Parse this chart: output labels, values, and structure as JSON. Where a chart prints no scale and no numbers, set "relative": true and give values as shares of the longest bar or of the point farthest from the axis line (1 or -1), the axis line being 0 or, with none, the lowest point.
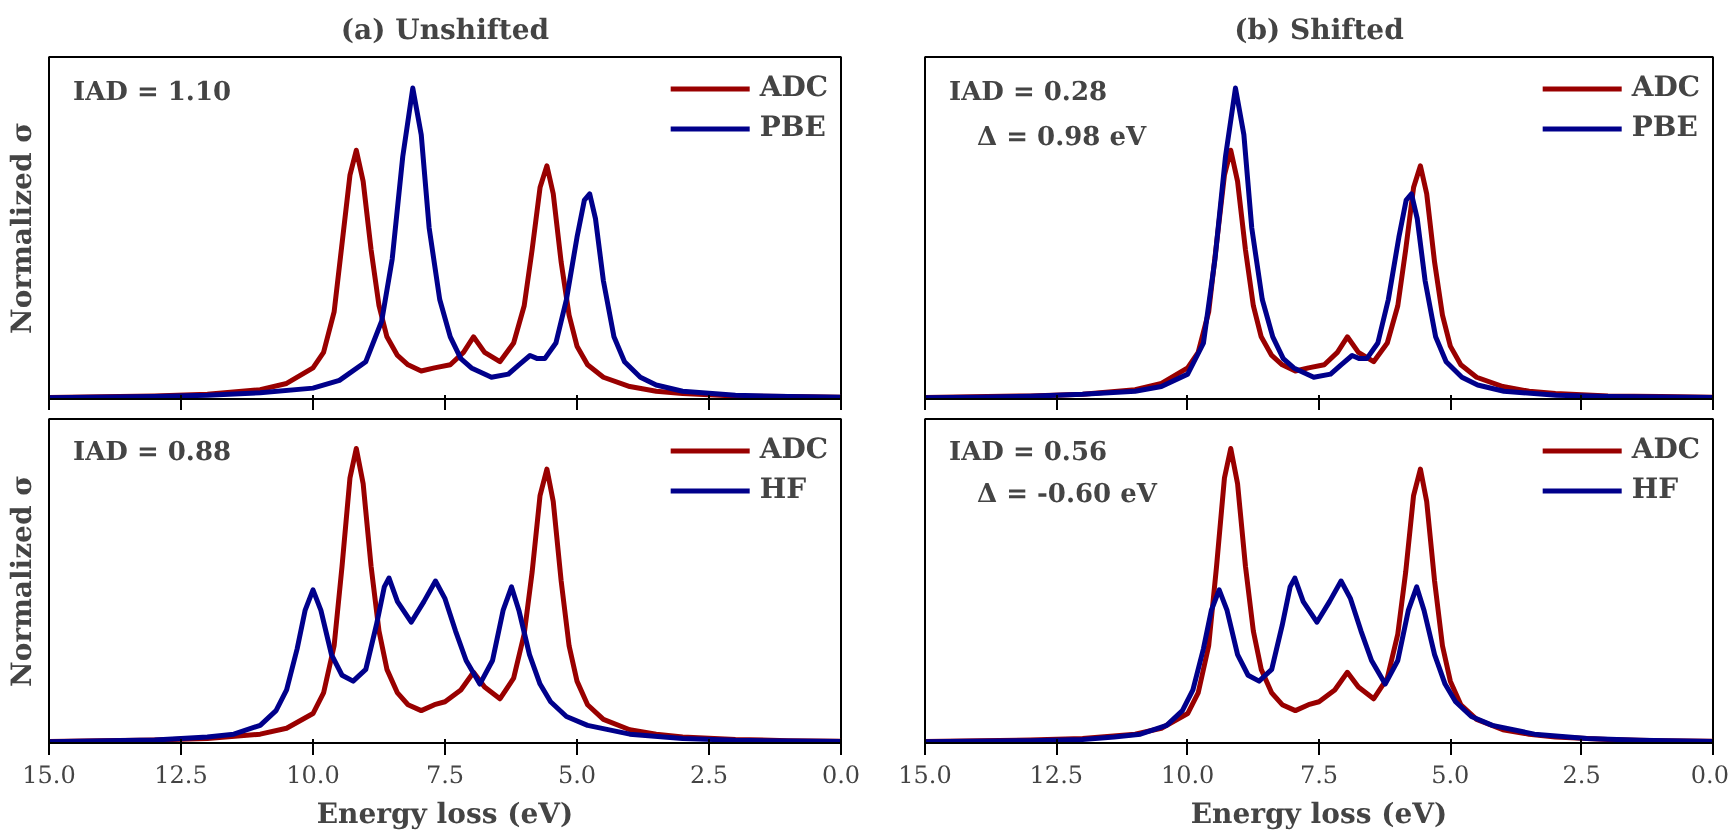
{
  "chart_data": [
    {
      "type": "line",
      "title": "(a) Unshifted",
      "ylabel": "Normalized σ",
      "relative": true,
      "xlim": [
        15,
        0
      ],
      "xticks": [
        15,
        12.5,
        10,
        7.5,
        5,
        2.5,
        0
      ],
      "tick_labels": false,
      "grid": false,
      "legend": "top right",
      "annotations": [
        "IAD = 1.10"
      ],
      "series": [
        {
          "name": "ADC",
          "color": "#990000",
          "x": [
            15,
            13,
            12,
            11,
            10.5,
            10,
            9.8,
            9.6,
            9.45,
            9.3,
            9.18,
            9.05,
            8.9,
            8.75,
            8.6,
            8.4,
            8.2,
            7.95,
            7.7,
            7.4,
            7.15,
            6.96,
            6.75,
            6.46,
            6.2,
            6.0,
            5.85,
            5.7,
            5.57,
            5.45,
            5.3,
            5.15,
            5.0,
            4.8,
            4.5,
            4.0,
            3.5,
            3.0,
            2.0,
            1.0,
            0
          ],
          "values": [
            0.005,
            0.01,
            0.015,
            0.03,
            0.05,
            0.1,
            0.15,
            0.28,
            0.5,
            0.72,
            0.8,
            0.7,
            0.48,
            0.3,
            0.2,
            0.14,
            0.11,
            0.09,
            0.1,
            0.11,
            0.15,
            0.2,
            0.15,
            0.12,
            0.18,
            0.3,
            0.48,
            0.68,
            0.75,
            0.66,
            0.44,
            0.27,
            0.17,
            0.11,
            0.07,
            0.04,
            0.025,
            0.018,
            0.01,
            0.008,
            0.006
          ]
        },
        {
          "name": "PBE",
          "color": "#00008b",
          "x": [
            15,
            13,
            12,
            11,
            10,
            9.5,
            9.0,
            8.7,
            8.5,
            8.3,
            8.11,
            7.95,
            7.8,
            7.6,
            7.4,
            7.2,
            7.0,
            6.62,
            6.3,
            6.1,
            5.89,
            5.75,
            5.61,
            5.4,
            5.2,
            5.0,
            4.86,
            4.76,
            4.65,
            4.5,
            4.3,
            4.1,
            3.8,
            3.5,
            3.0,
            2.0,
            1.0,
            0
          ],
          "values": [
            0.004,
            0.008,
            0.012,
            0.02,
            0.035,
            0.06,
            0.12,
            0.25,
            0.45,
            0.78,
            1.0,
            0.85,
            0.55,
            0.32,
            0.2,
            0.13,
            0.1,
            0.07,
            0.08,
            0.11,
            0.14,
            0.13,
            0.13,
            0.18,
            0.32,
            0.52,
            0.64,
            0.66,
            0.58,
            0.38,
            0.2,
            0.12,
            0.07,
            0.045,
            0.025,
            0.012,
            0.008,
            0.006
          ]
        }
      ]
    },
    {
      "type": "line",
      "title": "(b) Shifted",
      "relative": true,
      "xlim": [
        15,
        0
      ],
      "xticks": [
        15,
        12.5,
        10,
        7.5,
        5,
        2.5,
        0
      ],
      "tick_labels": false,
      "grid": false,
      "legend": "top right",
      "annotations": [
        "IAD = 0.28",
        "Δ = 0.98 eV"
      ],
      "series": [
        {
          "name": "ADC",
          "color": "#990000",
          "x": [
            15,
            13,
            12,
            11,
            10.5,
            10,
            9.8,
            9.6,
            9.45,
            9.3,
            9.18,
            9.05,
            8.9,
            8.75,
            8.6,
            8.4,
            8.2,
            7.95,
            7.7,
            7.4,
            7.15,
            6.96,
            6.75,
            6.46,
            6.2,
            6.0,
            5.85,
            5.7,
            5.57,
            5.45,
            5.3,
            5.15,
            5.0,
            4.8,
            4.5,
            4.0,
            3.5,
            3.0,
            2.0,
            1.0,
            0
          ],
          "values": [
            0.005,
            0.01,
            0.015,
            0.03,
            0.05,
            0.1,
            0.15,
            0.28,
            0.5,
            0.72,
            0.8,
            0.7,
            0.48,
            0.3,
            0.2,
            0.14,
            0.11,
            0.09,
            0.1,
            0.11,
            0.15,
            0.2,
            0.15,
            0.12,
            0.18,
            0.3,
            0.48,
            0.68,
            0.75,
            0.66,
            0.44,
            0.27,
            0.17,
            0.11,
            0.07,
            0.04,
            0.025,
            0.018,
            0.01,
            0.008,
            0.006
          ]
        },
        {
          "name": "PBE",
          "color": "#00008b",
          "x": [
            15,
            14,
            13,
            12,
            11,
            10.5,
            10.0,
            9.7,
            9.48,
            9.28,
            9.09,
            8.93,
            8.78,
            8.58,
            8.38,
            8.18,
            7.98,
            7.6,
            7.28,
            7.08,
            6.87,
            6.73,
            6.59,
            6.38,
            6.18,
            5.98,
            5.84,
            5.74,
            5.63,
            5.48,
            5.28,
            5.08,
            4.78,
            4.48,
            3.98,
            2.98,
            1.98,
            0
          ],
          "values": [
            0.004,
            0.006,
            0.009,
            0.015,
            0.025,
            0.04,
            0.08,
            0.18,
            0.45,
            0.78,
            1.0,
            0.85,
            0.55,
            0.32,
            0.2,
            0.13,
            0.1,
            0.07,
            0.08,
            0.11,
            0.14,
            0.13,
            0.13,
            0.18,
            0.32,
            0.52,
            0.64,
            0.66,
            0.58,
            0.38,
            0.2,
            0.12,
            0.07,
            0.045,
            0.025,
            0.012,
            0.008,
            0.005
          ]
        }
      ]
    },
    {
      "type": "line",
      "xlabel": "Energy loss (eV)",
      "ylabel": "Normalized σ",
      "relative": true,
      "xlim": [
        15,
        0
      ],
      "xticks": [
        {
          "value": 15,
          "label": "15.0"
        },
        {
          "value": 12.5,
          "label": "12.5"
        },
        {
          "value": 10,
          "label": "10.0"
        },
        {
          "value": 7.5,
          "label": "7.5"
        },
        {
          "value": 5,
          "label": "5.0"
        },
        {
          "value": 2.5,
          "label": "2.5"
        },
        {
          "value": 0,
          "label": "0.0"
        }
      ],
      "tick_labels": "x",
      "grid": false,
      "legend": "top right",
      "annotations": [
        "IAD = 0.88"
      ],
      "series": [
        {
          "name": "ADC",
          "color": "#990000",
          "x": [
            15,
            13,
            12,
            11,
            10.5,
            10,
            9.8,
            9.6,
            9.45,
            9.3,
            9.18,
            9.05,
            8.9,
            8.75,
            8.6,
            8.4,
            8.2,
            7.95,
            7.7,
            7.5,
            7.2,
            6.96,
            6.75,
            6.46,
            6.2,
            6.0,
            5.85,
            5.7,
            5.57,
            5.45,
            5.3,
            5.15,
            5.0,
            4.8,
            4.5,
            4.0,
            3.5,
            3.0,
            2.0,
            1.0,
            0
          ],
          "values": [
            0.005,
            0.01,
            0.015,
            0.03,
            0.05,
            0.1,
            0.17,
            0.33,
            0.6,
            0.9,
            1.0,
            0.88,
            0.6,
            0.38,
            0.25,
            0.17,
            0.13,
            0.11,
            0.13,
            0.14,
            0.18,
            0.24,
            0.19,
            0.15,
            0.22,
            0.37,
            0.58,
            0.84,
            0.93,
            0.82,
            0.55,
            0.33,
            0.21,
            0.13,
            0.08,
            0.045,
            0.03,
            0.02,
            0.012,
            0.008,
            0.006
          ]
        },
        {
          "name": "HF",
          "color": "#00008b",
          "x": [
            15,
            13,
            12,
            11.5,
            11,
            10.7,
            10.5,
            10.3,
            10.15,
            10.0,
            9.85,
            9.65,
            9.45,
            9.24,
            9.0,
            8.8,
            8.65,
            8.56,
            8.4,
            8.14,
            7.9,
            7.68,
            7.5,
            7.3,
            7.1,
            6.84,
            6.6,
            6.4,
            6.24,
            6.1,
            5.9,
            5.7,
            5.5,
            5.2,
            4.8,
            4.0,
            3.0,
            2.0,
            0
          ],
          "values": [
            0.004,
            0.01,
            0.02,
            0.03,
            0.06,
            0.11,
            0.18,
            0.32,
            0.45,
            0.52,
            0.45,
            0.3,
            0.23,
            0.21,
            0.25,
            0.4,
            0.53,
            0.56,
            0.48,
            0.41,
            0.48,
            0.55,
            0.49,
            0.38,
            0.28,
            0.2,
            0.28,
            0.45,
            0.53,
            0.45,
            0.3,
            0.2,
            0.14,
            0.09,
            0.06,
            0.03,
            0.015,
            0.009,
            0.005
          ]
        }
      ]
    },
    {
      "type": "line",
      "xlabel": "Energy loss (eV)",
      "relative": true,
      "xlim": [
        15,
        0
      ],
      "xticks": [
        {
          "value": 15,
          "label": "15.0"
        },
        {
          "value": 12.5,
          "label": "12.5"
        },
        {
          "value": 10,
          "label": "10.0"
        },
        {
          "value": 7.5,
          "label": "7.5"
        },
        {
          "value": 5,
          "label": "5.0"
        },
        {
          "value": 2.5,
          "label": "2.5"
        },
        {
          "value": 0,
          "label": "0.0"
        }
      ],
      "tick_labels": "x",
      "grid": false,
      "legend": "top right",
      "annotations": [
        "IAD = 0.56",
        "Δ = -0.60 eV"
      ],
      "series": [
        {
          "name": "ADC",
          "color": "#990000",
          "x": [
            15,
            13,
            12,
            11,
            10.5,
            10,
            9.8,
            9.6,
            9.45,
            9.3,
            9.18,
            9.05,
            8.9,
            8.75,
            8.6,
            8.4,
            8.2,
            7.95,
            7.7,
            7.5,
            7.2,
            6.96,
            6.75,
            6.46,
            6.2,
            6.0,
            5.85,
            5.7,
            5.57,
            5.45,
            5.3,
            5.15,
            5.0,
            4.8,
            4.5,
            4.0,
            3.5,
            3.0,
            2.0,
            1.0,
            0
          ],
          "values": [
            0.005,
            0.01,
            0.015,
            0.03,
            0.05,
            0.1,
            0.17,
            0.33,
            0.6,
            0.9,
            1.0,
            0.88,
            0.6,
            0.38,
            0.25,
            0.17,
            0.13,
            0.11,
            0.13,
            0.14,
            0.18,
            0.24,
            0.19,
            0.15,
            0.22,
            0.37,
            0.58,
            0.84,
            0.93,
            0.82,
            0.55,
            0.33,
            0.21,
            0.13,
            0.08,
            0.045,
            0.03,
            0.02,
            0.012,
            0.008,
            0.006
          ]
        },
        {
          "name": "HF",
          "color": "#00008b",
          "x": [
            15,
            13,
            12,
            11.4,
            10.9,
            10.4,
            10.1,
            9.9,
            9.7,
            9.55,
            9.4,
            9.25,
            9.05,
            8.85,
            8.64,
            8.4,
            8.2,
            8.05,
            7.96,
            7.8,
            7.54,
            7.3,
            7.08,
            6.9,
            6.7,
            6.5,
            6.24,
            6.0,
            5.8,
            5.64,
            5.5,
            5.3,
            5.1,
            4.9,
            4.6,
            4.2,
            3.4,
            2.4,
            1.4,
            0
          ],
          "values": [
            0.004,
            0.008,
            0.012,
            0.02,
            0.03,
            0.06,
            0.11,
            0.18,
            0.32,
            0.45,
            0.52,
            0.45,
            0.3,
            0.23,
            0.21,
            0.25,
            0.4,
            0.53,
            0.56,
            0.48,
            0.41,
            0.48,
            0.55,
            0.49,
            0.38,
            0.28,
            0.2,
            0.28,
            0.45,
            0.53,
            0.45,
            0.3,
            0.2,
            0.14,
            0.09,
            0.06,
            0.03,
            0.015,
            0.009,
            0.005
          ]
        }
      ]
    }
  ]
}
